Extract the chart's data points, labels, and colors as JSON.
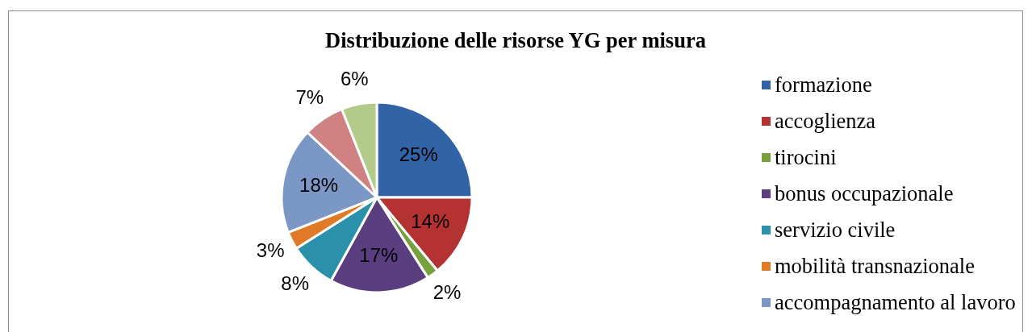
{
  "chart_data": {
    "type": "pie",
    "title": "Distribuzione delle risorse YG per misura",
    "categories": [
      "formazione",
      "accoglienza",
      "tirocini",
      "bonus occupazionale",
      "servizio civile",
      "mobilità transnazionale",
      "accompagnamento al lavoro",
      null,
      null
    ],
    "values": [
      25,
      14,
      2,
      17,
      8,
      3,
      18,
      7,
      6
    ],
    "colors": [
      "#3163a6",
      "#b43232",
      "#78a03c",
      "#5a3e80",
      "#2b91ab",
      "#e07a26",
      "#7b97c6",
      "#d08282",
      "#b2ca8a"
    ],
    "value_labels": [
      "25%",
      "14%",
      "2%",
      "17%",
      "8%",
      "3%",
      "18%",
      "7%",
      "6%"
    ],
    "legend": "right"
  }
}
